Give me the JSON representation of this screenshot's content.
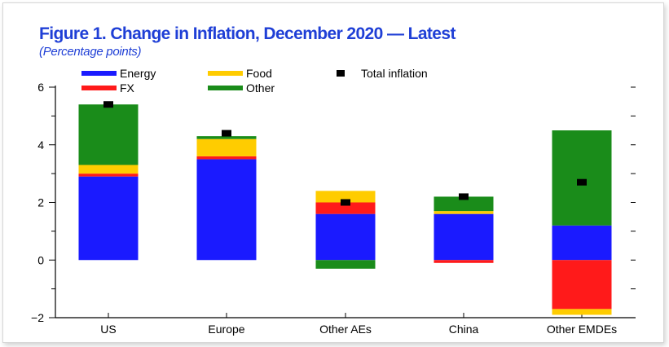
{
  "chart_data": {
    "type": "bar",
    "stacked": true,
    "title": "Figure 1.  Change in Inflation, December 2020 — Latest",
    "subtitle": "(Percentage points)",
    "xlabel": "",
    "ylabel": "",
    "categories": [
      "US",
      "Europe",
      "Other AEs",
      "China",
      "Other EMDEs"
    ],
    "ylim": [
      -2,
      6
    ],
    "yticks": [
      -2,
      0,
      2,
      4,
      6
    ],
    "grid": false,
    "legend_position": "top-left",
    "series": [
      {
        "name": "Energy",
        "color": "#1a1aff",
        "values": [
          2.9,
          3.5,
          1.6,
          1.6,
          1.2
        ]
      },
      {
        "name": "FX",
        "color": "#ff1a1a",
        "values": [
          0.1,
          0.1,
          0.4,
          -0.1,
          -1.7
        ]
      },
      {
        "name": "Food",
        "color": "#ffcc00",
        "values": [
          0.3,
          0.6,
          0.4,
          0.1,
          -0.2
        ]
      },
      {
        "name": "Other",
        "color": "#1a8c1a",
        "values": [
          2.1,
          0.1,
          -0.3,
          0.5,
          3.3
        ]
      }
    ],
    "total_inflation": {
      "name": "Total inflation",
      "color": "#000000",
      "values": [
        5.4,
        4.4,
        2.0,
        2.2,
        2.7
      ]
    }
  }
}
